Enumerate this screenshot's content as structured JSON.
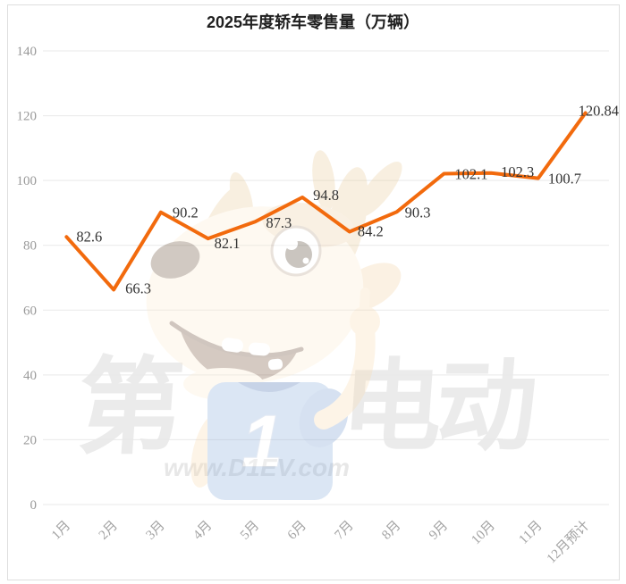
{
  "chart_data": {
    "type": "line",
    "title": "2025年度轿车零售量（万辆）",
    "categories": [
      "1月",
      "2月",
      "3月",
      "4月",
      "5月",
      "6月",
      "7月",
      "8月",
      "9月",
      "10月",
      "11月",
      "12月预计"
    ],
    "values": [
      82.6,
      66.3,
      90.2,
      82.1,
      87.3,
      94.8,
      84.2,
      90.3,
      102.1,
      102.3,
      100.7,
      120.84
    ],
    "value_labels": [
      "82.6",
      "66.3",
      "90.2",
      "82.1",
      "87.3",
      "94.8",
      "84.2",
      "90.3",
      "102.1",
      "102.3",
      "100.7",
      "120.84"
    ],
    "yticks": [
      0,
      20,
      40,
      60,
      80,
      100,
      120,
      140
    ],
    "ylim": [
      0,
      140
    ],
    "xlabel": "",
    "ylabel": "",
    "grid": true,
    "legend": "none",
    "line_color": "#f26a0d",
    "label_color": "#333333",
    "tick_color": "#999999",
    "grid_color": "#e9e9e9",
    "title_color": "#1f1f1f"
  },
  "watermark": {
    "brand_left": "第",
    "brand_number": "1",
    "brand_right": "电动",
    "url": "www.D1EV.com",
    "text_color": "#e9e9e9"
  }
}
